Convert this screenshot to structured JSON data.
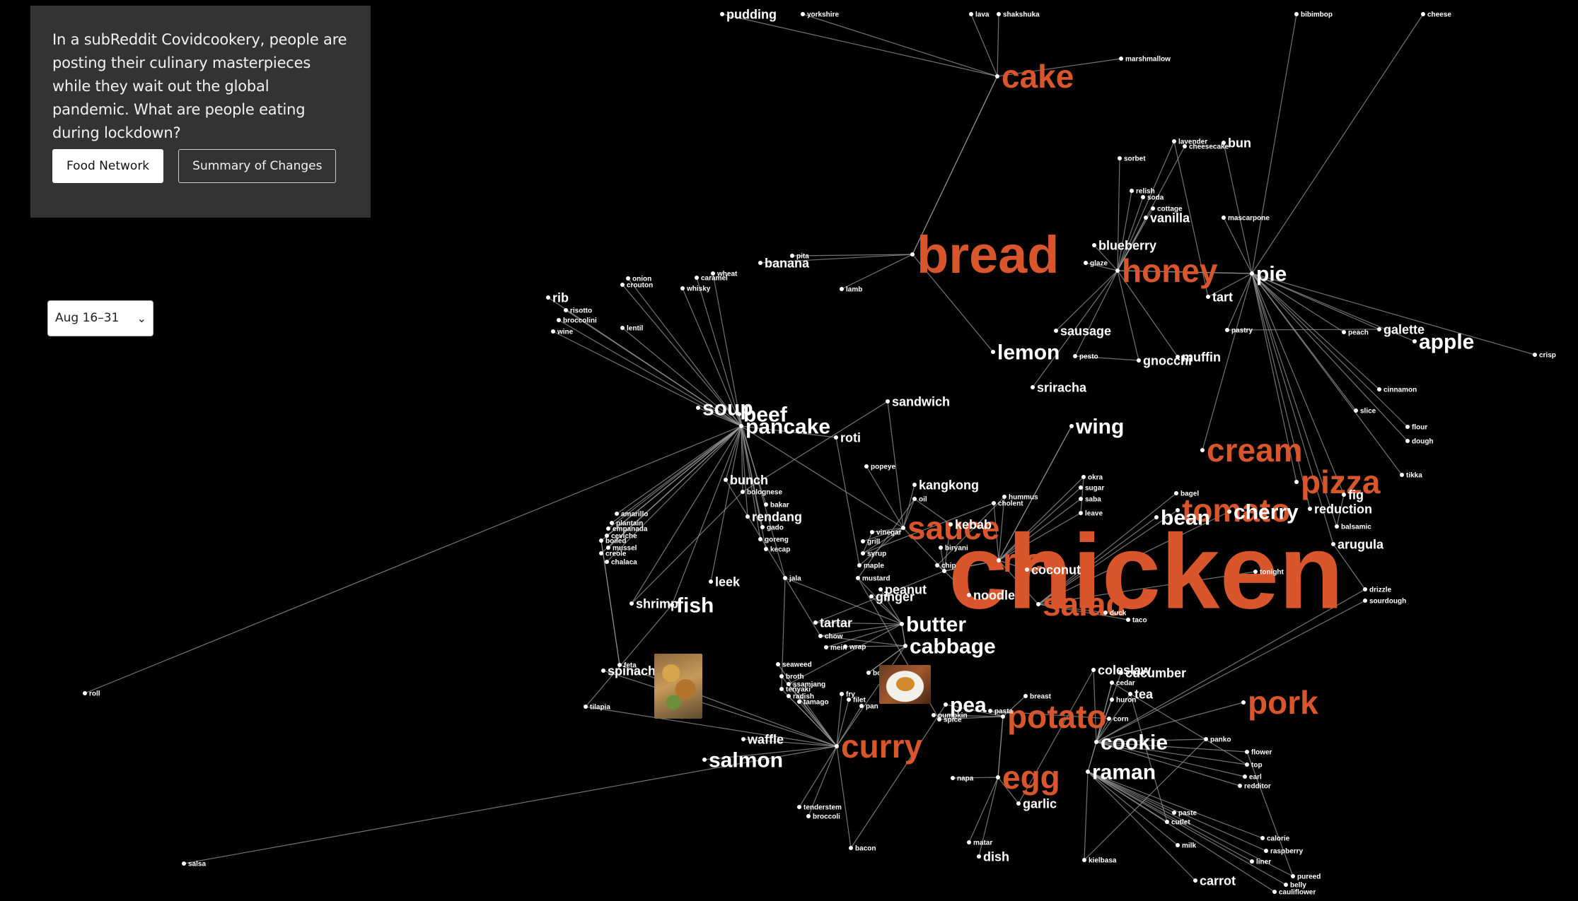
{
  "intro": {
    "text": "In a subReddit Covidcookery, people are posting their culinary masterpieces while they wait out the global pandemic. What are people eating during lockdown?"
  },
  "buttons": {
    "food_network": "Food Network",
    "summary": "Summary of Changes"
  },
  "date_range": {
    "selected": "Aug 16–31"
  },
  "colors": {
    "background": "#000000",
    "panel": "#333333",
    "highlight": "#d9552b",
    "node_label": "#ffffff",
    "edge": "#9a9a9a"
  },
  "words": [
    {
      "text": "chicken",
      "size": "xxl",
      "hl": true
    },
    {
      "text": "bread",
      "size": "xl",
      "hl": true
    },
    {
      "text": "honey",
      "size": "l",
      "hl": true
    },
    {
      "text": "cake",
      "size": "l",
      "hl": true
    },
    {
      "text": "sauce",
      "size": "l",
      "hl": true
    },
    {
      "text": "rice",
      "size": "l",
      "hl": true
    },
    {
      "text": "salad",
      "size": "l",
      "hl": true
    },
    {
      "text": "tomato",
      "size": "l",
      "hl": true
    },
    {
      "text": "pizza",
      "size": "l",
      "hl": true
    },
    {
      "text": "cream",
      "size": "l",
      "hl": true
    },
    {
      "text": "potato",
      "size": "l",
      "hl": true
    },
    {
      "text": "curry",
      "size": "l",
      "hl": true
    },
    {
      "text": "egg",
      "size": "l",
      "hl": true
    },
    {
      "text": "pork",
      "size": "l",
      "hl": true
    },
    {
      "text": "apple",
      "size": "m"
    },
    {
      "text": "pie",
      "size": "m"
    },
    {
      "text": "soup",
      "size": "m"
    },
    {
      "text": "beef",
      "size": "m"
    },
    {
      "text": "pancake",
      "size": "m"
    },
    {
      "text": "butter",
      "size": "m"
    },
    {
      "text": "cabbage",
      "size": "m"
    },
    {
      "text": "cookie",
      "size": "m"
    },
    {
      "text": "raman",
      "size": "m"
    },
    {
      "text": "salmon",
      "size": "m"
    },
    {
      "text": "fish",
      "size": "m"
    },
    {
      "text": "lemon",
      "size": "m"
    },
    {
      "text": "wing",
      "size": "m"
    },
    {
      "text": "bean",
      "size": "m"
    },
    {
      "text": "cherry",
      "size": "m"
    },
    {
      "text": "pea",
      "size": "m"
    },
    {
      "text": "pudding",
      "size": "s"
    },
    {
      "text": "banana",
      "size": "s"
    },
    {
      "text": "blueberry",
      "size": "s"
    },
    {
      "text": "vanilla",
      "size": "s"
    },
    {
      "text": "bun",
      "size": "s"
    },
    {
      "text": "tart",
      "size": "s"
    },
    {
      "text": "galette",
      "size": "s"
    },
    {
      "text": "sausage",
      "size": "s"
    },
    {
      "text": "muffin",
      "size": "s"
    },
    {
      "text": "gnocchi",
      "size": "s"
    },
    {
      "text": "sriracha",
      "size": "s"
    },
    {
      "text": "sandwich",
      "size": "s"
    },
    {
      "text": "roti",
      "size": "s"
    },
    {
      "text": "kangkong",
      "size": "s"
    },
    {
      "text": "bunch",
      "size": "s"
    },
    {
      "text": "rendang",
      "size": "s"
    },
    {
      "text": "kebab",
      "size": "s"
    },
    {
      "text": "coconut",
      "size": "s"
    },
    {
      "text": "noodle",
      "size": "s"
    },
    {
      "text": "peanut",
      "size": "s"
    },
    {
      "text": "ginger",
      "size": "s"
    },
    {
      "text": "tartar",
      "size": "s"
    },
    {
      "text": "leek",
      "size": "s"
    },
    {
      "text": "shrimp",
      "size": "s"
    },
    {
      "text": "spinach",
      "size": "s"
    },
    {
      "text": "cucumber",
      "size": "s"
    },
    {
      "text": "coleslaw",
      "size": "s"
    },
    {
      "text": "tea",
      "size": "s"
    },
    {
      "text": "waffle",
      "size": "s"
    },
    {
      "text": "garlic",
      "size": "s"
    },
    {
      "text": "dish",
      "size": "s"
    },
    {
      "text": "carrot",
      "size": "s"
    },
    {
      "text": "rib",
      "size": "s"
    },
    {
      "text": "fig",
      "size": "s"
    },
    {
      "text": "reduction",
      "size": "s"
    },
    {
      "text": "arugula",
      "size": "s"
    },
    {
      "text": "marshmallow",
      "size": "xs"
    },
    {
      "text": "sorbet",
      "size": "xs"
    },
    {
      "text": "lavender",
      "size": "xs"
    },
    {
      "text": "cheesecake",
      "size": "xs"
    },
    {
      "text": "soda",
      "size": "xs"
    },
    {
      "text": "cottage",
      "size": "xs"
    },
    {
      "text": "relish",
      "size": "xs"
    },
    {
      "text": "mascarpone",
      "size": "xs"
    },
    {
      "text": "glaze",
      "size": "xs"
    },
    {
      "text": "pastry",
      "size": "xs"
    },
    {
      "text": "peach",
      "size": "xs"
    },
    {
      "text": "crisp",
      "size": "xs"
    },
    {
      "text": "cinnamon",
      "size": "xs"
    },
    {
      "text": "slice",
      "size": "xs"
    },
    {
      "text": "flour",
      "size": "xs"
    },
    {
      "text": "dough",
      "size": "xs"
    },
    {
      "text": "tikka",
      "size": "xs"
    },
    {
      "text": "bagel",
      "size": "xs"
    },
    {
      "text": "balsamic",
      "size": "xs"
    },
    {
      "text": "tonight",
      "size": "xs"
    },
    {
      "text": "drizzle",
      "size": "xs"
    },
    {
      "text": "sourdough",
      "size": "xs"
    },
    {
      "text": "taco",
      "size": "xs"
    },
    {
      "text": "duck",
      "size": "xs"
    },
    {
      "text": "okra",
      "size": "xs"
    },
    {
      "text": "sugar",
      "size": "xs"
    },
    {
      "text": "saba",
      "size": "xs"
    },
    {
      "text": "leave",
      "size": "xs"
    },
    {
      "text": "hummus",
      "size": "xs"
    },
    {
      "text": "cholent",
      "size": "xs"
    },
    {
      "text": "pesto",
      "size": "xs"
    },
    {
      "text": "wheat",
      "size": "xs"
    },
    {
      "text": "caramel",
      "size": "xs"
    },
    {
      "text": "whisky",
      "size": "xs"
    },
    {
      "text": "lamb",
      "size": "xs"
    },
    {
      "text": "pita",
      "size": "xs"
    },
    {
      "text": "onion",
      "size": "xs"
    },
    {
      "text": "crouton",
      "size": "xs"
    },
    {
      "text": "risotto",
      "size": "xs"
    },
    {
      "text": "broccolini",
      "size": "xs"
    },
    {
      "text": "wine",
      "size": "xs"
    },
    {
      "text": "lentil",
      "size": "xs"
    },
    {
      "text": "popeye",
      "size": "xs"
    },
    {
      "text": "oil",
      "size": "xs"
    },
    {
      "text": "bolognese",
      "size": "xs"
    },
    {
      "text": "bakar",
      "size": "xs"
    },
    {
      "text": "gado",
      "size": "xs"
    },
    {
      "text": "goreng",
      "size": "xs"
    },
    {
      "text": "kecap",
      "size": "xs"
    },
    {
      "text": "grill",
      "size": "xs"
    },
    {
      "text": "syrup",
      "size": "xs"
    },
    {
      "text": "maple",
      "size": "xs"
    },
    {
      "text": "mustard",
      "size": "xs"
    },
    {
      "text": "vinegar",
      "size": "xs"
    },
    {
      "text": "biryani",
      "size": "xs"
    },
    {
      "text": "chip",
      "size": "xs"
    },
    {
      "text": "jala",
      "size": "xs"
    },
    {
      "text": "amarillo",
      "size": "xs"
    },
    {
      "text": "plantain",
      "size": "xs"
    },
    {
      "text": "empanada",
      "size": "xs"
    },
    {
      "text": "ceviche",
      "size": "xs"
    },
    {
      "text": "boiled",
      "size": "xs"
    },
    {
      "text": "mussel",
      "size": "xs"
    },
    {
      "text": "creole",
      "size": "xs"
    },
    {
      "text": "chalaca",
      "size": "xs"
    },
    {
      "text": "chow",
      "size": "xs"
    },
    {
      "text": "mein",
      "size": "xs"
    },
    {
      "text": "wrap",
      "size": "xs"
    },
    {
      "text": "seaweed",
      "size": "xs"
    },
    {
      "text": "broth",
      "size": "xs"
    },
    {
      "text": "ssamjang",
      "size": "xs"
    },
    {
      "text": "teriyaki",
      "size": "xs"
    },
    {
      "text": "radish",
      "size": "xs"
    },
    {
      "text": "tamago",
      "size": "xs"
    },
    {
      "text": "fry",
      "size": "xs"
    },
    {
      "text": "filet",
      "size": "xs"
    },
    {
      "text": "pan",
      "size": "xs"
    },
    {
      "text": "bog",
      "size": "xs"
    },
    {
      "text": "pumpkin",
      "size": "xs"
    },
    {
      "text": "spice",
      "size": "xs"
    },
    {
      "text": "pasta",
      "size": "xs"
    },
    {
      "text": "breast",
      "size": "xs"
    },
    {
      "text": "huron",
      "size": "xs"
    },
    {
      "text": "corn",
      "size": "xs"
    },
    {
      "text": "cedar",
      "size": "xs"
    },
    {
      "text": "panko",
      "size": "xs"
    },
    {
      "text": "flower",
      "size": "xs"
    },
    {
      "text": "top",
      "size": "xs"
    },
    {
      "text": "earl",
      "size": "xs"
    },
    {
      "text": "redditor",
      "size": "xs"
    },
    {
      "text": "tenderstem",
      "size": "xs"
    },
    {
      "text": "broccoli",
      "size": "xs"
    },
    {
      "text": "bacon",
      "size": "xs"
    },
    {
      "text": "matar",
      "size": "xs"
    },
    {
      "text": "kielbasa",
      "size": "xs"
    },
    {
      "text": "paste",
      "size": "xs"
    },
    {
      "text": "cutlet",
      "size": "xs"
    },
    {
      "text": "milk",
      "size": "xs"
    },
    {
      "text": "calorie",
      "size": "xs"
    },
    {
      "text": "raspberry",
      "size": "xs"
    },
    {
      "text": "liner",
      "size": "xs"
    },
    {
      "text": "pureed",
      "size": "xs"
    },
    {
      "text": "belly",
      "size": "xs"
    },
    {
      "text": "cauliflower",
      "size": "xs"
    },
    {
      "text": "napa",
      "size": "xs"
    },
    {
      "text": "tilapia",
      "size": "xs"
    },
    {
      "text": "feta",
      "size": "xs"
    },
    {
      "text": "roll",
      "size": "xs"
    },
    {
      "text": "salsa",
      "size": "xs"
    },
    {
      "text": "yorkshire",
      "size": "xs"
    },
    {
      "text": "lava",
      "size": "xs"
    },
    {
      "text": "shakshuka",
      "size": "xs"
    },
    {
      "text": "bibimbop",
      "size": "xs"
    },
    {
      "text": "cheese",
      "size": "xs"
    }
  ]
}
